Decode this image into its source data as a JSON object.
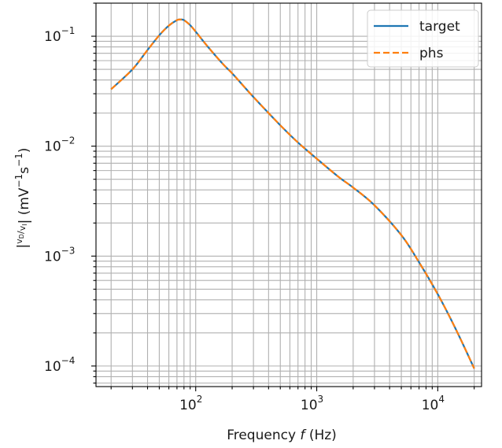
{
  "chart_data": {
    "type": "line",
    "xlabel": "Frequency f (Hz)",
    "ylabel": "|vD/vI| (mV⁻¹s⁻¹)",
    "xscale": "log",
    "yscale": "log",
    "xlim": [
      15,
      23000
    ],
    "ylim": [
      6.5e-05,
      0.2
    ],
    "grid": true,
    "grid_minor": true,
    "legend_position": "upper right",
    "x_ticks": [
      {
        "value": 100,
        "base": "10",
        "exp": "2"
      },
      {
        "value": 1000,
        "base": "10",
        "exp": "3"
      },
      {
        "value": 10000,
        "base": "10",
        "exp": "4"
      }
    ],
    "y_ticks": [
      {
        "value": 0.1,
        "base": "10",
        "exp": "−1"
      },
      {
        "value": 0.01,
        "base": "10",
        "exp": "−2"
      },
      {
        "value": 0.001,
        "base": "10",
        "exp": "−3"
      },
      {
        "value": 0.0001,
        "base": "10",
        "exp": "−4"
      }
    ],
    "x": [
      20,
      30,
      40,
      50,
      60,
      70,
      75,
      80,
      90,
      100,
      130,
      170,
      200,
      300,
      500,
      700,
      1000,
      1500,
      2000,
      3000,
      5000,
      7000,
      10000,
      14000,
      20000
    ],
    "series": [
      {
        "name": "target",
        "color": "#1f77b4",
        "style": "solid",
        "values": [
          0.033,
          0.05,
          0.075,
          0.102,
          0.125,
          0.14,
          0.142,
          0.14,
          0.126,
          0.11,
          0.077,
          0.055,
          0.046,
          0.028,
          0.0155,
          0.0108,
          0.0077,
          0.0053,
          0.0042,
          0.0029,
          0.00155,
          0.00088,
          0.00045,
          0.00022,
          9.5e-05
        ]
      },
      {
        "name": "phs",
        "color": "#ff7f0e",
        "style": "dashed",
        "values": [
          0.033,
          0.05,
          0.075,
          0.102,
          0.125,
          0.14,
          0.142,
          0.14,
          0.126,
          0.11,
          0.077,
          0.055,
          0.046,
          0.028,
          0.0155,
          0.0108,
          0.0077,
          0.0053,
          0.0042,
          0.0029,
          0.00155,
          0.00088,
          0.00045,
          0.00022,
          9.5e-05
        ]
      }
    ]
  }
}
